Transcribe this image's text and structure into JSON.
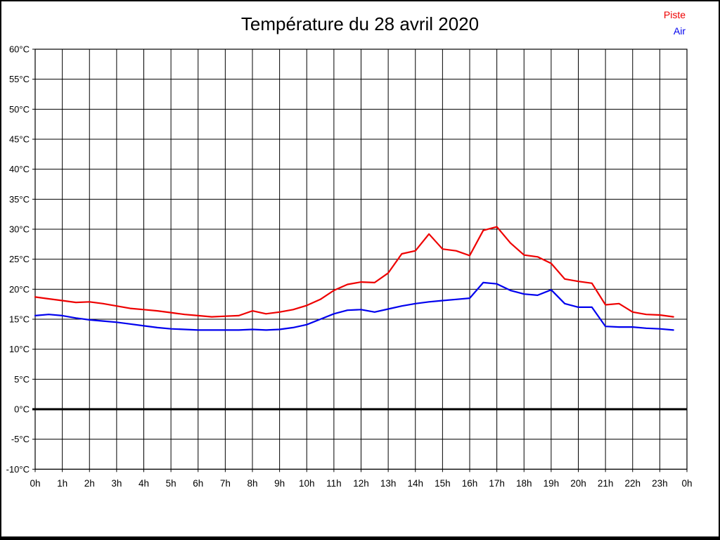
{
  "title": "Température du 28 avril 2020",
  "legend": [
    {
      "label": "Piste",
      "color": "#ee0000"
    },
    {
      "label": "Air",
      "color": "#0000ee"
    }
  ],
  "colors": {
    "grid": "#000000",
    "zero_line": "#000000",
    "background": "#ffffff"
  },
  "chart_data": {
    "type": "line",
    "title": "Température du 28 avril 2020",
    "xlabel": "",
    "ylabel": "",
    "xlim": [
      0,
      24
    ],
    "ylim": [
      -10,
      60
    ],
    "y_step": 5,
    "grid": true,
    "zero_line_value": 0,
    "legend_position": "top-right",
    "x_tick_labels": [
      "0h",
      "1h",
      "2h",
      "3h",
      "4h",
      "5h",
      "6h",
      "7h",
      "8h",
      "9h",
      "10h",
      "11h",
      "12h",
      "13h",
      "14h",
      "15h",
      "16h",
      "17h",
      "18h",
      "19h",
      "20h",
      "21h",
      "22h",
      "23h",
      "0h"
    ],
    "y_tick_labels": [
      "60°C",
      "55°C",
      "50°C",
      "45°C",
      "40°C",
      "35°C",
      "30°C",
      "25°C",
      "20°C",
      "15°C",
      "10°C",
      "5°C",
      "0°C",
      "-5°C",
      "-10°C"
    ],
    "x": [
      0,
      0.5,
      1,
      1.5,
      2,
      2.5,
      3,
      3.5,
      4,
      4.5,
      5,
      5.5,
      6,
      6.5,
      7,
      7.5,
      8,
      8.5,
      9,
      9.5,
      10,
      10.5,
      11,
      11.5,
      12,
      12.5,
      13,
      13.5,
      14,
      14.5,
      15,
      15.5,
      16,
      16.5,
      17,
      17.5,
      18,
      18.5,
      19,
      19.5,
      20,
      20.5,
      21,
      21.5,
      22,
      22.5,
      23,
      23.5
    ],
    "series": [
      {
        "name": "Piste",
        "color": "#ee0000",
        "values": [
          18.7,
          18.4,
          18.1,
          17.8,
          17.9,
          17.6,
          17.2,
          16.8,
          16.6,
          16.4,
          16.1,
          15.8,
          15.6,
          15.4,
          15.5,
          15.6,
          16.4,
          15.9,
          16.2,
          16.6,
          17.3,
          18.3,
          19.8,
          20.8,
          21.2,
          21.1,
          22.7,
          25.9,
          26.4,
          29.2,
          26.7,
          26.4,
          25.6,
          29.8,
          30.4,
          27.7,
          25.7,
          25.4,
          24.3,
          21.7,
          21.3,
          21.0,
          17.4,
          17.6,
          16.2,
          15.8,
          15.7,
          15.4
        ]
      },
      {
        "name": "Air",
        "color": "#0000ee",
        "values": [
          15.6,
          15.8,
          15.6,
          15.2,
          14.9,
          14.7,
          14.5,
          14.2,
          13.9,
          13.6,
          13.4,
          13.3,
          13.2,
          13.2,
          13.2,
          13.2,
          13.3,
          13.2,
          13.3,
          13.6,
          14.1,
          15.0,
          15.9,
          16.5,
          16.6,
          16.2,
          16.7,
          17.2,
          17.6,
          17.9,
          18.1,
          18.3,
          18.5,
          21.1,
          20.9,
          19.8,
          19.2,
          19.0,
          19.9,
          17.6,
          17.0,
          17.0,
          13.8,
          13.7,
          13.7,
          13.5,
          13.4,
          13.2
        ]
      }
    ]
  }
}
